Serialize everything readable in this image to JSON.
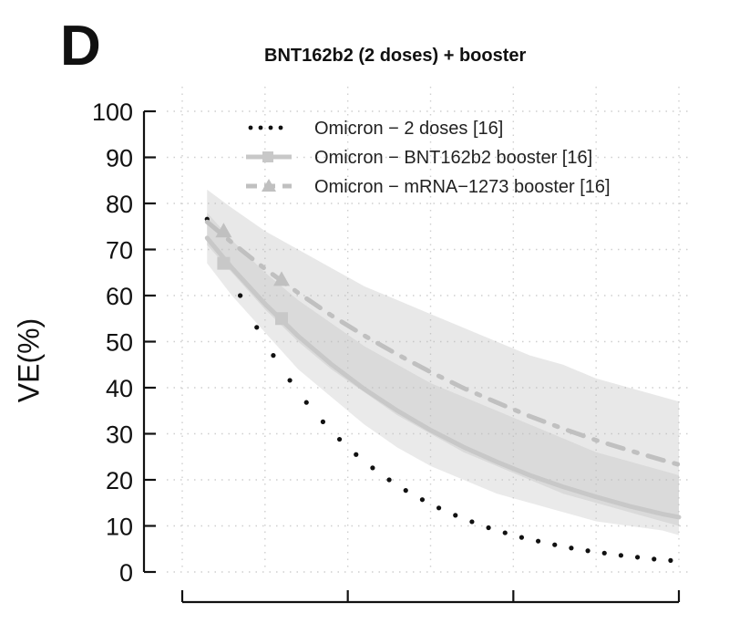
{
  "panel_letter": "D",
  "chart_data": {
    "type": "line",
    "title": "BNT162b2 (2 doses) + booster",
    "xlabel": "",
    "ylabel": "VE(%)",
    "xlim": [
      0,
      30
    ],
    "ylim": [
      0,
      100
    ],
    "x_ticks": [
      0,
      10,
      20,
      30
    ],
    "x_tick_labels": [],
    "y_ticks": [
      0,
      10,
      20,
      30,
      40,
      50,
      60,
      70,
      80,
      90,
      100
    ],
    "y_tick_labels": [
      "0",
      "10",
      "20",
      "30",
      "40",
      "50",
      "60",
      "70",
      "80",
      "90",
      "100"
    ],
    "grid": true,
    "legend_position": "top-right",
    "series": [
      {
        "name": "Omicron − 2 doses [16]",
        "color": "#111111",
        "style": "dotted",
        "x": [
          1.5,
          2.5,
          3.5,
          4.5,
          5.5,
          6.5,
          7.5,
          8.5,
          9.5,
          10.5,
          11.5,
          12.5,
          13.5,
          14.5,
          15.5,
          16.5,
          17.5,
          18.5,
          19.5,
          20.5,
          21.5,
          22.5,
          23.5,
          24.5,
          25.5,
          26.5,
          27.5,
          28.5,
          29.5
        ],
        "y": [
          76.6,
          67.8,
          60.0,
          53.1,
          47.0,
          41.6,
          36.8,
          32.6,
          28.8,
          25.5,
          22.6,
          20.0,
          17.7,
          15.7,
          13.9,
          12.3,
          10.9,
          9.6,
          8.5,
          7.5,
          6.7,
          5.9,
          5.2,
          4.6,
          4.1,
          3.6,
          3.2,
          2.8,
          2.5
        ]
      },
      {
        "name": "Omicron − BNT162b2 booster [16]",
        "color": "#c8c8c8",
        "style": "solid",
        "markers": "square",
        "x": [
          1.5,
          3,
          5,
          7,
          9,
          11,
          13,
          15,
          17,
          19,
          21,
          23,
          25,
          27,
          29,
          30
        ],
        "y": [
          72.5,
          66.0,
          58.2,
          51.2,
          45.1,
          39.7,
          35.0,
          30.8,
          27.1,
          23.9,
          21.0,
          18.5,
          16.3,
          14.3,
          12.6,
          11.9
        ],
        "marker_points": {
          "x": [
            2.5,
            6.0
          ],
          "y": [
            67.0,
            55.0
          ]
        },
        "band_upper": [
          78,
          72,
          65,
          59,
          54,
          49,
          45,
          41,
          38,
          35,
          32,
          29,
          26,
          24,
          22,
          21
        ],
        "band_lower": [
          67,
          60,
          52,
          44,
          38,
          32,
          27,
          23,
          20,
          17,
          15,
          13,
          11,
          10,
          9,
          8
        ]
      },
      {
        "name": "Omicron − mRNA−1273 booster [16]",
        "color": "#c0c0c0",
        "style": "dashdot",
        "markers": "triangle",
        "x": [
          1.5,
          3,
          5,
          7,
          9,
          11,
          13,
          15,
          17,
          19,
          21,
          23,
          25,
          27,
          29,
          30
        ],
        "y": [
          76.0,
          71.5,
          65.8,
          60.6,
          55.7,
          51.3,
          47.2,
          43.4,
          39.9,
          36.8,
          33.8,
          31.1,
          28.6,
          26.4,
          24.3,
          23.3
        ],
        "marker_points": {
          "x": [
            2.5,
            6.0
          ],
          "y": [
            74.0,
            63.5
          ]
        },
        "band_upper": [
          83,
          79,
          74,
          70,
          66,
          62,
          59,
          56,
          53,
          50,
          47,
          45,
          42,
          40,
          38,
          37
        ],
        "band_lower": [
          71,
          65,
          57,
          50,
          44,
          39,
          34,
          30,
          26,
          23,
          20,
          17,
          15,
          13,
          11,
          10
        ]
      }
    ]
  }
}
